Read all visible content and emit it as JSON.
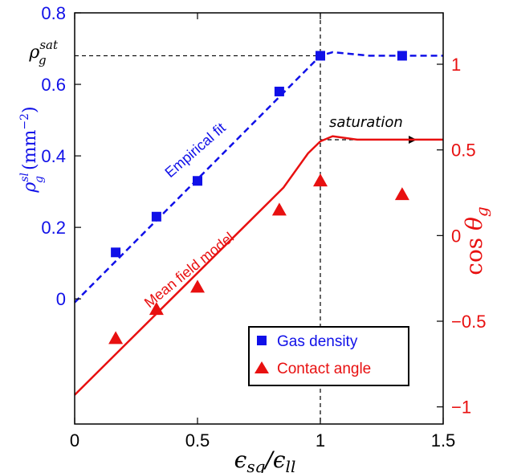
{
  "chart_data": {
    "type": "scatter",
    "x_axis": {
      "label": "ε_sg / ε_ll",
      "range": [
        0,
        1.5
      ],
      "ticks": [
        0,
        0.5,
        1,
        1.5
      ],
      "tick_labels": [
        "0",
        "0.5",
        "1",
        "1.5"
      ]
    },
    "y_left": {
      "label": "ρ_g^sl (mm^-2)",
      "range": [
        -0.35,
        0.8
      ],
      "ticks": [
        0,
        0.2,
        0.4,
        0.6,
        0.8
      ],
      "tick_labels": [
        "0",
        "0.2",
        "0.4",
        "0.6",
        "0.8"
      ],
      "color": "#1010e8"
    },
    "y_right": {
      "label": "cos θ_g",
      "range": [
        -1.1,
        1.3
      ],
      "ticks": [
        -1,
        -0.5,
        0,
        0.5,
        1
      ],
      "tick_labels": [
        "−1",
        "−0.5",
        "0",
        "0.5",
        "1"
      ],
      "color": "#e81010"
    },
    "series": [
      {
        "name": "Gas density",
        "axis": "left",
        "marker": "square",
        "color": "#1010e8",
        "x": [
          0.167,
          0.333,
          0.5,
          0.833,
          1.0,
          1.333
        ],
        "y": [
          0.13,
          0.23,
          0.33,
          0.58,
          0.68,
          0.68
        ]
      },
      {
        "name": "Contact angle",
        "axis": "right",
        "marker": "triangle",
        "color": "#e81010",
        "x": [
          0.167,
          0.333,
          0.5,
          0.833,
          1.0,
          1.333
        ],
        "y": [
          -0.6,
          -0.43,
          -0.3,
          0.15,
          0.32,
          0.24
        ]
      }
    ],
    "lines": [
      {
        "label": "Empirical fit",
        "axis": "left",
        "style": "dashed",
        "color": "#1010e8",
        "x": [
          0,
          1.0,
          1.05,
          1.2,
          1.5
        ],
        "y": [
          -0.01,
          0.68,
          0.69,
          0.68,
          0.68
        ]
      },
      {
        "label": "Mean field model",
        "axis": "right",
        "style": "solid",
        "color": "#e81010",
        "x": [
          0,
          0.85,
          0.95,
          1.0,
          1.05,
          1.15,
          1.5
        ],
        "y": [
          -0.93,
          0.28,
          0.48,
          0.55,
          0.58,
          0.56,
          0.56
        ]
      }
    ],
    "reference_lines": {
      "vertical_x": 1.0,
      "horizontal_left_y": 0.68,
      "horizontal_label": "ρ_g^sat"
    },
    "annotations": {
      "saturation": "saturation",
      "empirical_fit": "Empirical fit",
      "mean_field": "Mean field model"
    },
    "legend": {
      "placement": "bottom-right",
      "entries": [
        "Gas density",
        "Contact angle"
      ]
    },
    "grid": false
  }
}
